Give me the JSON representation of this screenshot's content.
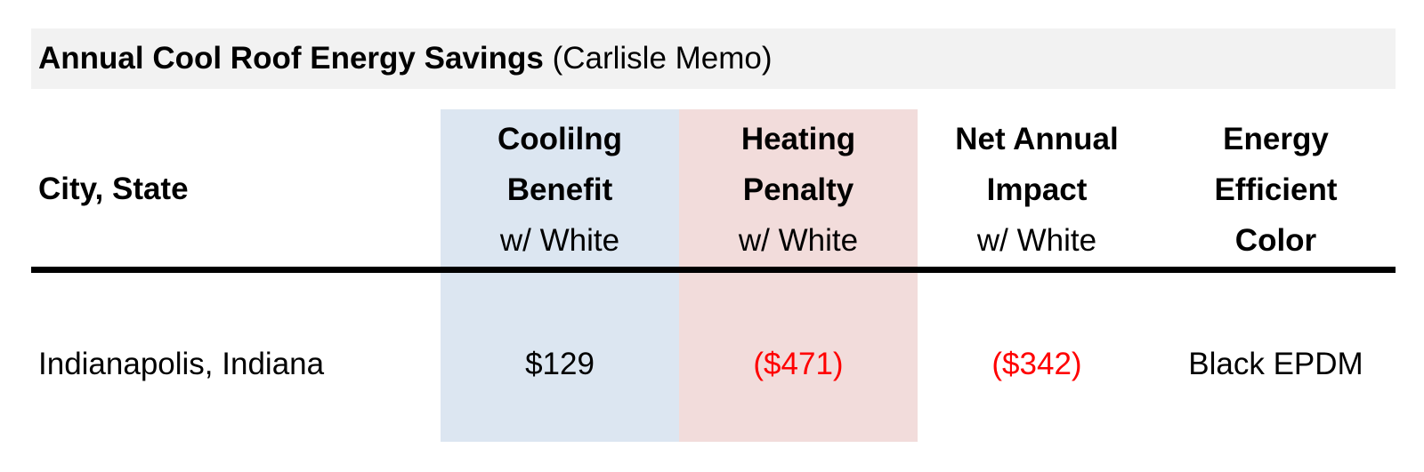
{
  "title": {
    "bold": "Annual Cool Roof Energy Savings",
    "normal": "(Carlisle Memo)"
  },
  "columns": {
    "city": "City, State",
    "cooling": {
      "line1": "Coolilng",
      "line2": "Benefit",
      "line3": "w/ White"
    },
    "heating": {
      "line1": "Heating",
      "line2": "Penalty",
      "line3": "w/ White"
    },
    "net": {
      "line1": "Net Annual",
      "line2": "Impact",
      "line3": "w/ White"
    },
    "color": {
      "line1": "Energy",
      "line2": "Efficient",
      "line3": "Color"
    }
  },
  "rows": [
    {
      "city": "Indianapolis, Indiana",
      "cooling": "$129",
      "heating": "($471)",
      "net": "($342)",
      "color": "Black EPDM"
    }
  ],
  "colors": {
    "cooling_shade": "#dce6f1",
    "heating_shade": "#f2dcdb",
    "negative_value": "#ff0000",
    "title_bg": "#f2f2f2"
  }
}
